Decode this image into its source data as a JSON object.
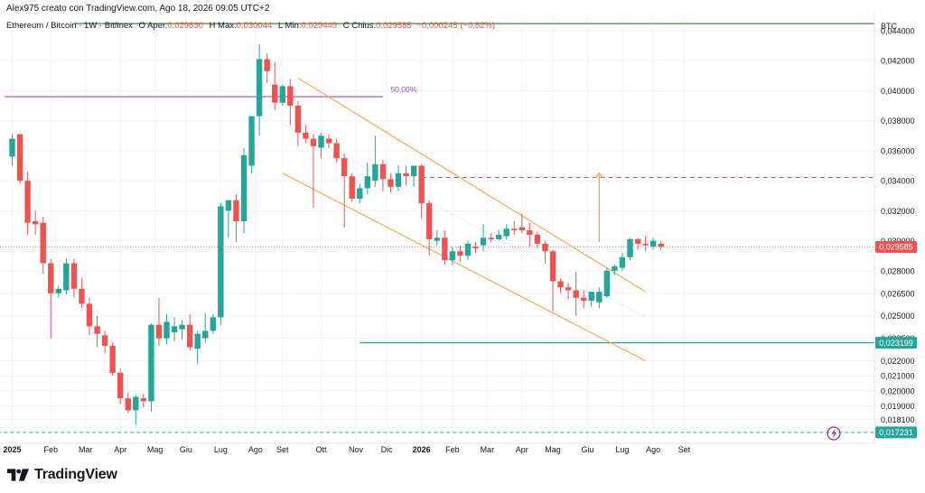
{
  "header": {
    "credit": "Alex975 creato con TradingView.com, Ago 18, 2026 09:05 UTC+2",
    "symbol": "Ethereum / Bitcoin · 1W · Bitfinex",
    "o_label": "O",
    "o_key": "Aper.",
    "o_val": "0,029830",
    "h_label": "H",
    "h_key": "Max.",
    "h_val": "0,030044",
    "l_label": "L",
    "l_key": "Min.",
    "l_val": "0,029449",
    "c_label": "C",
    "c_key": "Chius.",
    "c_val": "0,029585",
    "change": "−0,000245 (−0,82%)"
  },
  "branding": {
    "name": "TradingView"
  },
  "icons": {
    "logo": "tradingview-logo-icon",
    "replay": "lightning-icon"
  },
  "colors": {
    "up": "#26a69a",
    "down": "#ef5350",
    "channel": "#f7a440",
    "fib": "#ab47bc",
    "support": "#26a69a",
    "resistance": "#388e3c"
  },
  "chart_data": {
    "type": "candlestick",
    "currency": "BTC",
    "ylim": [
      0.0165,
      0.0452
    ],
    "y_ticks": [
      "0,018100",
      "0,019000",
      "0,020000",
      "0,021000",
      "0,022000",
      "0,023500",
      "0,025000",
      "0,026500",
      "0,028000",
      "0,030000",
      "0,032000",
      "0,034000",
      "0,036000",
      "0,038000",
      "0,040000",
      "0,042000",
      "0,044000"
    ],
    "x_ticks": [
      "2025",
      "Feb",
      "Mar",
      "Apr",
      "Mag",
      "Giu",
      "Lug",
      "Ago",
      "Set",
      "Ott",
      "Nov",
      "Dic",
      "2026",
      "Feb",
      "Mar",
      "Apr",
      "Mag",
      "Giu",
      "Lug",
      "Ago",
      "Set"
    ],
    "candles": [
      [
        0.0356,
        0.0371,
        0.035,
        0.0368
      ],
      [
        0.0371,
        0.0371,
        0.0338,
        0.034
      ],
      [
        0.034,
        0.0346,
        0.0304,
        0.0312
      ],
      [
        0.0313,
        0.032,
        0.0304,
        0.0311
      ],
      [
        0.0312,
        0.0316,
        0.0278,
        0.0285
      ],
      [
        0.0285,
        0.0288,
        0.0235,
        0.0265
      ],
      [
        0.0265,
        0.027,
        0.0262,
        0.0268
      ],
      [
        0.0267,
        0.0288,
        0.0264,
        0.0285
      ],
      [
        0.0285,
        0.0288,
        0.0262,
        0.0268
      ],
      [
        0.0268,
        0.0275,
        0.0255,
        0.0258
      ],
      [
        0.0258,
        0.0262,
        0.0237,
        0.0243
      ],
      [
        0.0243,
        0.025,
        0.0229,
        0.0238
      ],
      [
        0.0237,
        0.024,
        0.0225,
        0.023
      ],
      [
        0.023,
        0.0232,
        0.021,
        0.0212
      ],
      [
        0.0212,
        0.0215,
        0.0191,
        0.0195
      ],
      [
        0.0195,
        0.0199,
        0.0185,
        0.0187
      ],
      [
        0.0187,
        0.0197,
        0.0177,
        0.0196
      ],
      [
        0.0195,
        0.0198,
        0.0189,
        0.0193
      ],
      [
        0.0193,
        0.0245,
        0.0186,
        0.0244
      ],
      [
        0.0244,
        0.0262,
        0.023,
        0.0235
      ],
      [
        0.0235,
        0.0251,
        0.0231,
        0.0246
      ],
      [
        0.0239,
        0.0249,
        0.0233,
        0.0243
      ],
      [
        0.0241,
        0.0247,
        0.0234,
        0.0244
      ],
      [
        0.0244,
        0.0251,
        0.0227,
        0.0229
      ],
      [
        0.0228,
        0.024,
        0.0218,
        0.0238
      ],
      [
        0.0235,
        0.0252,
        0.0232,
        0.024
      ],
      [
        0.024,
        0.0251,
        0.0238,
        0.0249
      ],
      [
        0.0249,
        0.0325,
        0.0244,
        0.0323
      ],
      [
        0.032,
        0.0327,
        0.0302,
        0.0327
      ],
      [
        0.0327,
        0.0331,
        0.0299,
        0.0313
      ],
      [
        0.0313,
        0.0362,
        0.0305,
        0.0357
      ],
      [
        0.035,
        0.0382,
        0.0345,
        0.0383
      ],
      [
        0.0383,
        0.0431,
        0.037,
        0.0421
      ],
      [
        0.0421,
        0.0425,
        0.0405,
        0.0413
      ],
      [
        0.0404,
        0.0419,
        0.0387,
        0.0392
      ],
      [
        0.0392,
        0.0404,
        0.039,
        0.0403
      ],
      [
        0.0403,
        0.0408,
        0.0377,
        0.039
      ],
      [
        0.039,
        0.0393,
        0.0363,
        0.0372
      ],
      [
        0.0372,
        0.0377,
        0.0365,
        0.0368
      ],
      [
        0.0368,
        0.0371,
        0.0322,
        0.0363
      ],
      [
        0.0362,
        0.0372,
        0.0355,
        0.037
      ],
      [
        0.0368,
        0.0371,
        0.0362,
        0.0365
      ],
      [
        0.0365,
        0.0368,
        0.0352,
        0.0355
      ],
      [
        0.0355,
        0.0358,
        0.0309,
        0.0343
      ],
      [
        0.0343,
        0.0345,
        0.0326,
        0.0328
      ],
      [
        0.0328,
        0.0338,
        0.0325,
        0.0335
      ],
      [
        0.0335,
        0.0352,
        0.0331,
        0.0343
      ],
      [
        0.034,
        0.037,
        0.0336,
        0.0351
      ],
      [
        0.0351,
        0.0354,
        0.0333,
        0.0341
      ],
      [
        0.0341,
        0.0345,
        0.0332,
        0.0336
      ],
      [
        0.0336,
        0.035,
        0.0333,
        0.0345
      ],
      [
        0.0345,
        0.035,
        0.0337,
        0.0343
      ],
      [
        0.0343,
        0.035,
        0.0336,
        0.035
      ],
      [
        0.035,
        0.0351,
        0.0315,
        0.0325
      ],
      [
        0.0325,
        0.0327,
        0.029,
        0.0301
      ],
      [
        0.03,
        0.0307,
        0.0297,
        0.0302
      ],
      [
        0.0302,
        0.0307,
        0.0284,
        0.0287
      ],
      [
        0.0287,
        0.0296,
        0.0284,
        0.0293
      ],
      [
        0.0293,
        0.0297,
        0.0286,
        0.029
      ],
      [
        0.029,
        0.03,
        0.0287,
        0.0298
      ],
      [
        0.0296,
        0.0299,
        0.0292,
        0.0295
      ],
      [
        0.0297,
        0.0311,
        0.0293,
        0.0302
      ],
      [
        0.0302,
        0.0305,
        0.0299,
        0.0301
      ],
      [
        0.0301,
        0.0307,
        0.03,
        0.0304
      ],
      [
        0.0303,
        0.0311,
        0.0301,
        0.0308
      ],
      [
        0.0308,
        0.0313,
        0.0304,
        0.0307
      ],
      [
        0.0309,
        0.0318,
        0.0305,
        0.0307
      ],
      [
        0.0307,
        0.0312,
        0.0296,
        0.0304
      ],
      [
        0.0304,
        0.0306,
        0.0295,
        0.0298
      ],
      [
        0.0298,
        0.03,
        0.0285,
        0.0293
      ],
      [
        0.0293,
        0.0294,
        0.0253,
        0.0273
      ],
      [
        0.0273,
        0.0275,
        0.0265,
        0.0269
      ],
      [
        0.0269,
        0.0272,
        0.0261,
        0.0267
      ],
      [
        0.0267,
        0.0279,
        0.025,
        0.0262
      ],
      [
        0.0262,
        0.0267,
        0.0255,
        0.026
      ],
      [
        0.026,
        0.0266,
        0.0256,
        0.0266
      ],
      [
        0.0259,
        0.0269,
        0.0255,
        0.0266
      ],
      [
        0.0263,
        0.0282,
        0.0262,
        0.028
      ],
      [
        0.028,
        0.0284,
        0.0277,
        0.0283
      ],
      [
        0.0282,
        0.0292,
        0.028,
        0.0289
      ],
      [
        0.0289,
        0.0302,
        0.0287,
        0.0301
      ],
      [
        0.0301,
        0.0302,
        0.0294,
        0.0298
      ],
      [
        0.0298,
        0.0303,
        0.0293,
        0.0297
      ],
      [
        0.0296,
        0.0302,
        0.0294,
        0.03
      ],
      [
        0.0298,
        0.03,
        0.0294,
        0.0296
      ]
    ],
    "levels": [
      {
        "label": "0,017231",
        "value": 0.017231,
        "style": "dashed"
      },
      {
        "label": "0,023199",
        "value": 0.023199,
        "style": "solid"
      },
      {
        "label": "0,029585",
        "value": 0.029585,
        "style": "last-price"
      },
      {
        "value": 0.04447,
        "style": "solid"
      },
      {
        "value": 0.03422,
        "style": "dashed"
      }
    ],
    "fib_level": {
      "value": 0.0396,
      "label": "50,00%"
    },
    "channel": {
      "upper": [
        [
          37,
          0.04085
        ],
        [
          82,
          0.0266
        ]
      ],
      "lower": [
        [
          35,
          0.0345
        ],
        [
          82,
          0.022
        ]
      ],
      "mid": [
        [
          35,
          0.0378
        ],
        [
          82,
          0.0249
        ]
      ]
    },
    "projection": {
      "from": 0.0299,
      "to": 0.0345,
      "at_candle": 76
    }
  }
}
